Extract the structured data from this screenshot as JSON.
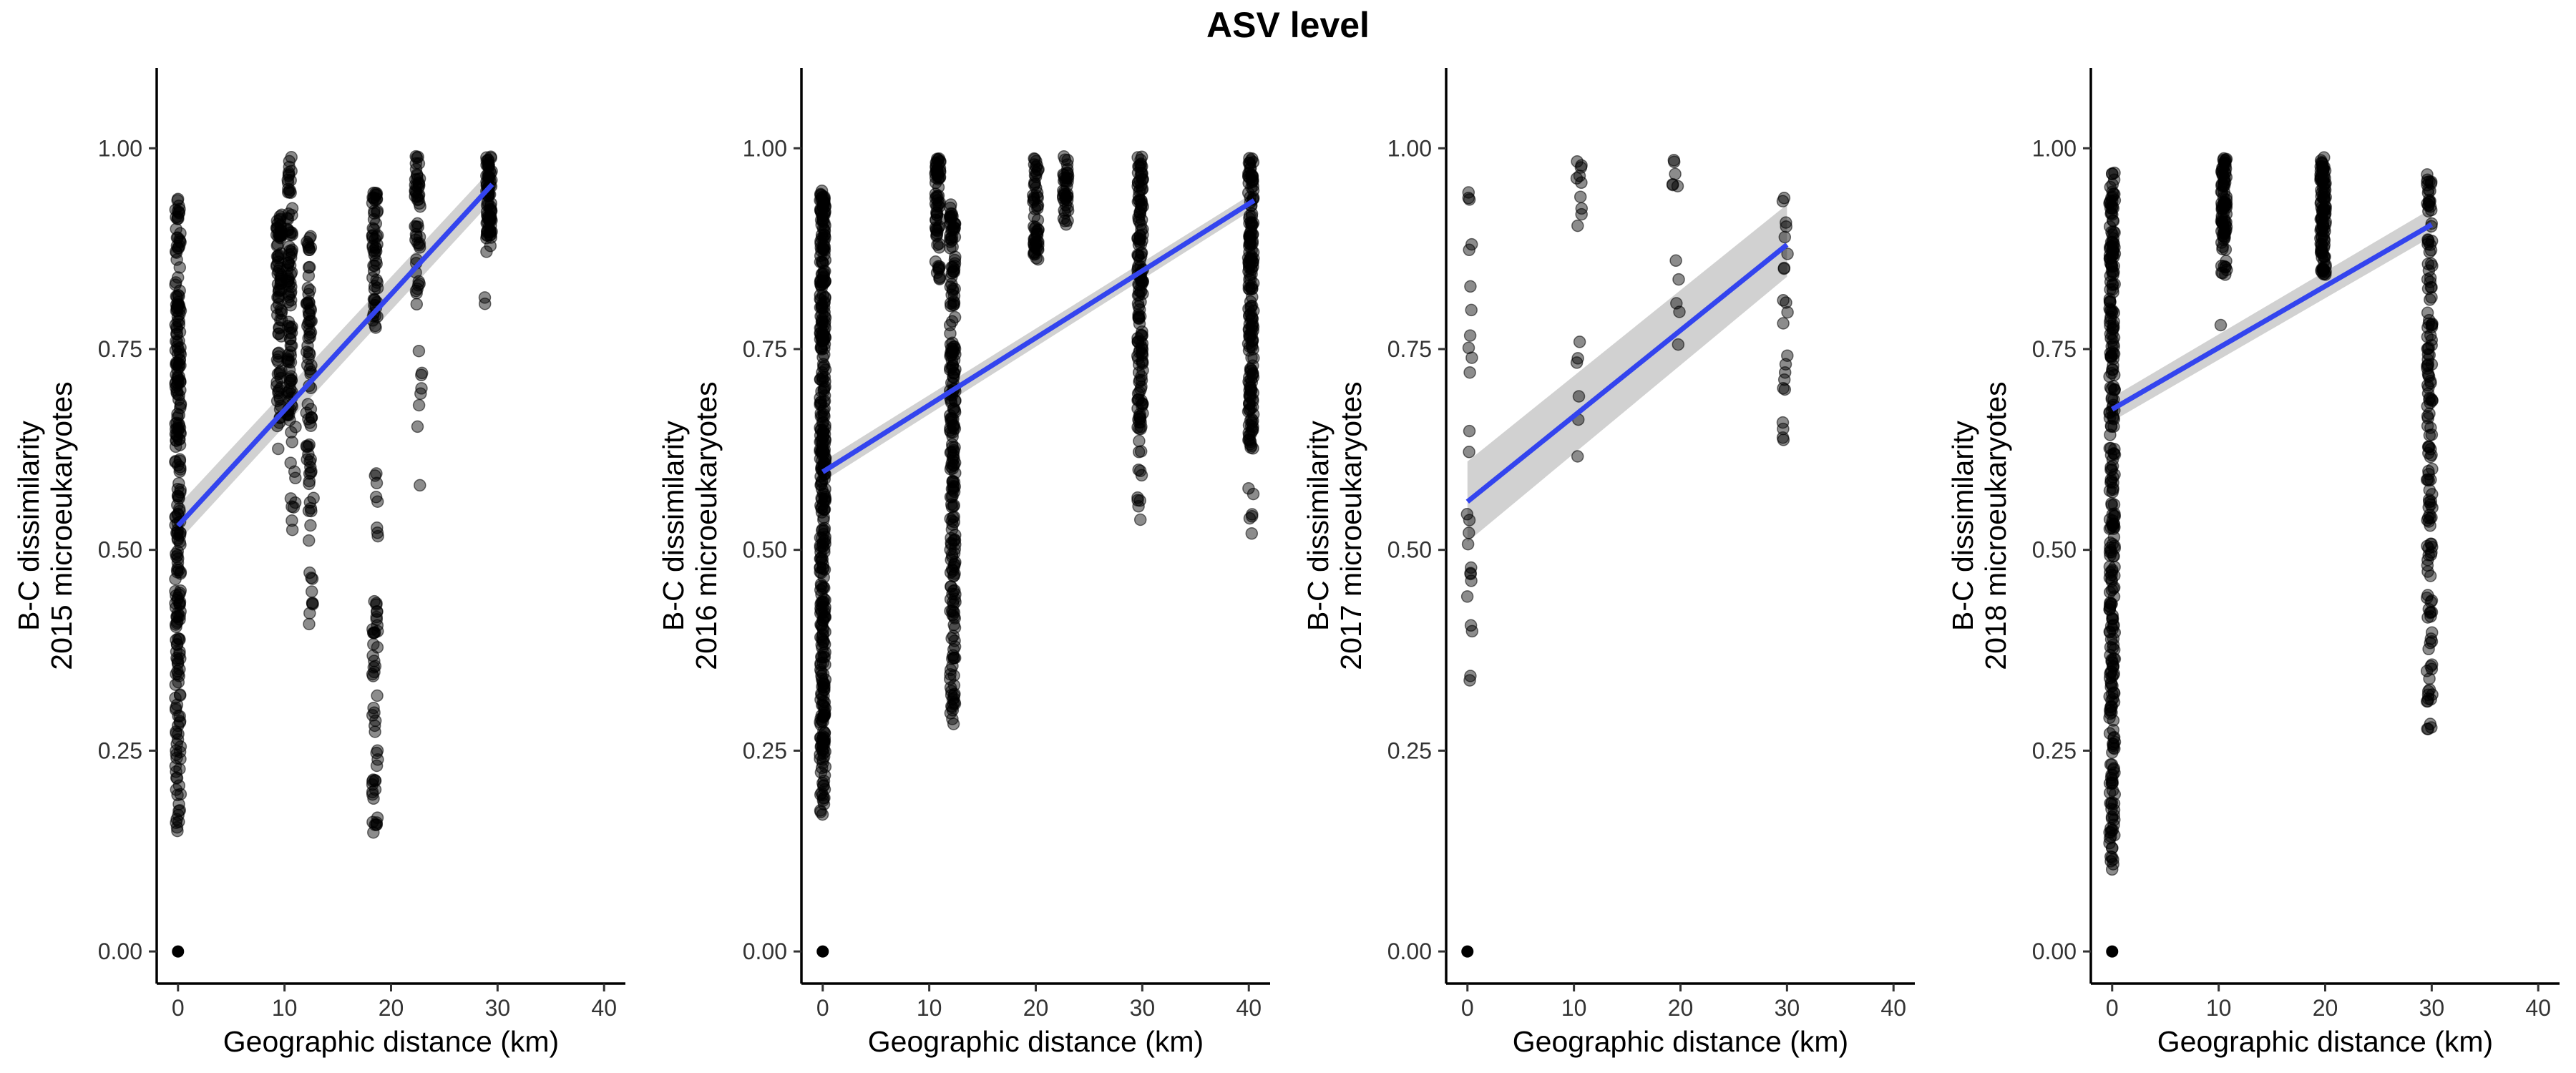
{
  "figure_title": "ASV level",
  "colors": {
    "points": "#000000",
    "fit_line": "#3344ee",
    "ci_band": "#999999"
  },
  "chart_data": [
    {
      "type": "scatter",
      "title": "",
      "xlabel": "Geographic distance (km)",
      "ylabel": [
        "B-C dissimilarity",
        "2015 microeukaryotes"
      ],
      "xlim": [
        -2,
        42
      ],
      "ylim": [
        -0.04,
        1.1
      ],
      "xticks": [
        0,
        10,
        20,
        30,
        40
      ],
      "xtick_labels": [
        "0",
        "10",
        "20",
        "30",
        "40"
      ],
      "yticks": [
        0,
        0.25,
        0.5,
        0.75,
        1
      ],
      "ytick_labels": [
        "0.00",
        "0.25",
        "0.50",
        "0.75",
        "1.00"
      ],
      "grid": false,
      "points": [
        {
          "x": 0,
          "y_ranges": [
            [
              0.14,
              0.94
            ]
          ],
          "n": 260
        },
        {
          "x": 9.5,
          "y_ranges": [
            [
              0.62,
              0.92
            ]
          ],
          "n": 90
        },
        {
          "x": 10.5,
          "y_ranges": [
            [
              0.66,
              0.99
            ]
          ],
          "n": 100
        },
        {
          "x": 10.8,
          "y_ranges": [
            [
              0.38,
              0.66
            ]
          ],
          "n": 12
        },
        {
          "x": 12.3,
          "y_ranges": [
            [
              0.58,
              0.9
            ]
          ],
          "n": 70
        },
        {
          "x": 12.5,
          "y_ranges": [
            [
              0.36,
              0.57
            ]
          ],
          "n": 16
        },
        {
          "x": 18.5,
          "y_ranges": [
            [
              0.77,
              0.95
            ]
          ],
          "n": 60
        },
        {
          "x": 18.5,
          "y_ranges": [
            [
              0.14,
              0.44
            ]
          ],
          "n": 50
        },
        {
          "x": 18.7,
          "y_ranges": [
            [
              0.5,
              0.63
            ]
          ],
          "n": 8
        },
        {
          "x": 22.5,
          "y_ranges": [
            [
              0.8,
              0.99
            ]
          ],
          "n": 50
        },
        {
          "x": 22.7,
          "y_ranges": [
            [
              0.55,
              0.75
            ]
          ],
          "n": 8
        },
        {
          "x": 29.2,
          "y_ranges": [
            [
              0.87,
              0.99
            ]
          ],
          "n": 80
        },
        {
          "x": 29.0,
          "y_ranges": [
            [
              0.8,
              0.82
            ]
          ],
          "n": 2
        }
      ],
      "single_points": [
        {
          "x": 0,
          "y": 0
        }
      ],
      "fit": {
        "x": [
          0,
          29.5
        ],
        "y": [
          0.53,
          0.955
        ],
        "ci": [
          [
            0.51,
            0.555
          ],
          [
            0.935,
            0.975
          ]
        ]
      }
    },
    {
      "type": "scatter",
      "title": "",
      "xlabel": "Geographic distance (km)",
      "ylabel": [
        "B-C dissimilarity",
        "2016 microeukaryotes"
      ],
      "xlim": [
        -2,
        42
      ],
      "ylim": [
        -0.04,
        1.1
      ],
      "xticks": [
        0,
        10,
        20,
        30,
        40
      ],
      "xtick_labels": [
        "0",
        "10",
        "20",
        "30",
        "40"
      ],
      "yticks": [
        0,
        0.25,
        0.5,
        0.75,
        1
      ],
      "ytick_labels": [
        "0.00",
        "0.25",
        "0.50",
        "0.75",
        "1.00"
      ],
      "grid": false,
      "points": [
        {
          "x": 0,
          "y_ranges": [
            [
              0.17,
              0.95
            ]
          ],
          "n": 420
        },
        {
          "x": 10.8,
          "y_ranges": [
            [
              0.83,
              0.99
            ]
          ],
          "n": 70
        },
        {
          "x": 12.2,
          "y_ranges": [
            [
              0.28,
              0.93
            ]
          ],
          "n": 240
        },
        {
          "x": 20,
          "y_ranges": [
            [
              0.85,
              0.99
            ]
          ],
          "n": 60
        },
        {
          "x": 22.8,
          "y_ranges": [
            [
              0.9,
              0.99
            ]
          ],
          "n": 40
        },
        {
          "x": 29.8,
          "y_ranges": [
            [
              0.62,
              0.99
            ]
          ],
          "n": 160
        },
        {
          "x": 29.8,
          "y_ranges": [
            [
              0.51,
              0.6
            ]
          ],
          "n": 8
        },
        {
          "x": 40.2,
          "y_ranges": [
            [
              0.62,
              0.99
            ]
          ],
          "n": 190
        },
        {
          "x": 40.2,
          "y_ranges": [
            [
              0.52,
              0.58
            ]
          ],
          "n": 6
        }
      ],
      "single_points": [
        {
          "x": 0,
          "y": 0
        }
      ],
      "fit": {
        "x": [
          0,
          40.5
        ],
        "y": [
          0.597,
          0.935
        ],
        "ci": [
          [
            0.585,
            0.61
          ],
          [
            0.925,
            0.945
          ]
        ]
      }
    },
    {
      "type": "scatter",
      "title": "",
      "xlabel": "Geographic distance (km)",
      "ylabel": [
        "B-C dissimilarity",
        "2017 microeukaryotes"
      ],
      "xlim": [
        -2,
        42
      ],
      "ylim": [
        -0.04,
        1.1
      ],
      "xticks": [
        0,
        10,
        20,
        30,
        40
      ],
      "xtick_labels": [
        "0",
        "10",
        "20",
        "30",
        "40"
      ],
      "yticks": [
        0,
        0.25,
        0.5,
        0.75,
        1
      ],
      "ytick_labels": [
        "0.00",
        "0.25",
        "0.50",
        "0.75",
        "1.00"
      ],
      "grid": false,
      "points": [
        {
          "x": 0.2,
          "y_ranges": [
            [
              0.33,
              0.96
            ]
          ],
          "n": 26
        },
        {
          "x": 10.5,
          "y_ranges": [
            [
              0.9,
              0.99
            ]
          ],
          "n": 10
        },
        {
          "x": 10.5,
          "y_ranges": [
            [
              0.61,
              0.76
            ]
          ],
          "n": 6
        },
        {
          "x": 19.5,
          "y_ranges": [
            [
              0.94,
              0.99
            ]
          ],
          "n": 6
        },
        {
          "x": 19.8,
          "y_ranges": [
            [
              0.75,
              0.87
            ]
          ],
          "n": 5
        },
        {
          "x": 29.8,
          "y_ranges": [
            [
              0.6,
              0.95
            ]
          ],
          "n": 22
        }
      ],
      "single_points": [
        {
          "x": 0,
          "y": 0
        }
      ],
      "fit": {
        "x": [
          0,
          30
        ],
        "y": [
          0.56,
          0.88
        ],
        "ci": [
          [
            0.51,
            0.61
          ],
          [
            0.84,
            0.93
          ]
        ]
      }
    },
    {
      "type": "scatter",
      "title": "",
      "xlabel": "Geographic distance (km)",
      "ylabel": [
        "B-C dissimilarity",
        "2018 microeukaryotes"
      ],
      "xlim": [
        -2,
        42
      ],
      "ylim": [
        -0.04,
        1.1
      ],
      "xticks": [
        0,
        10,
        20,
        30,
        40
      ],
      "xtick_labels": [
        "0",
        "10",
        "20",
        "30",
        "40"
      ],
      "yticks": [
        0,
        0.25,
        0.5,
        0.75,
        1
      ],
      "ytick_labels": [
        "0.00",
        "0.25",
        "0.50",
        "0.75",
        "1.00"
      ],
      "grid": false,
      "points": [
        {
          "x": 0,
          "y_ranges": [
            [
              0.1,
              0.97
            ]
          ],
          "n": 320
        },
        {
          "x": 10.5,
          "y_ranges": [
            [
              0.84,
              0.99
            ]
          ],
          "n": 90
        },
        {
          "x": 10.3,
          "y_ranges": [
            [
              0.77,
              0.78
            ]
          ],
          "n": 1
        },
        {
          "x": 19.8,
          "y_ranges": [
            [
              0.84,
              0.99
            ]
          ],
          "n": 110
        },
        {
          "x": 29.8,
          "y_ranges": [
            [
              0.27,
              0.97
            ]
          ],
          "n": 160
        }
      ],
      "single_points": [
        {
          "x": 0,
          "y": 0
        }
      ],
      "fit": {
        "x": [
          0,
          30
        ],
        "y": [
          0.675,
          0.905
        ],
        "ci": [
          [
            0.66,
            0.69
          ],
          [
            0.89,
            0.925
          ]
        ]
      }
    }
  ]
}
